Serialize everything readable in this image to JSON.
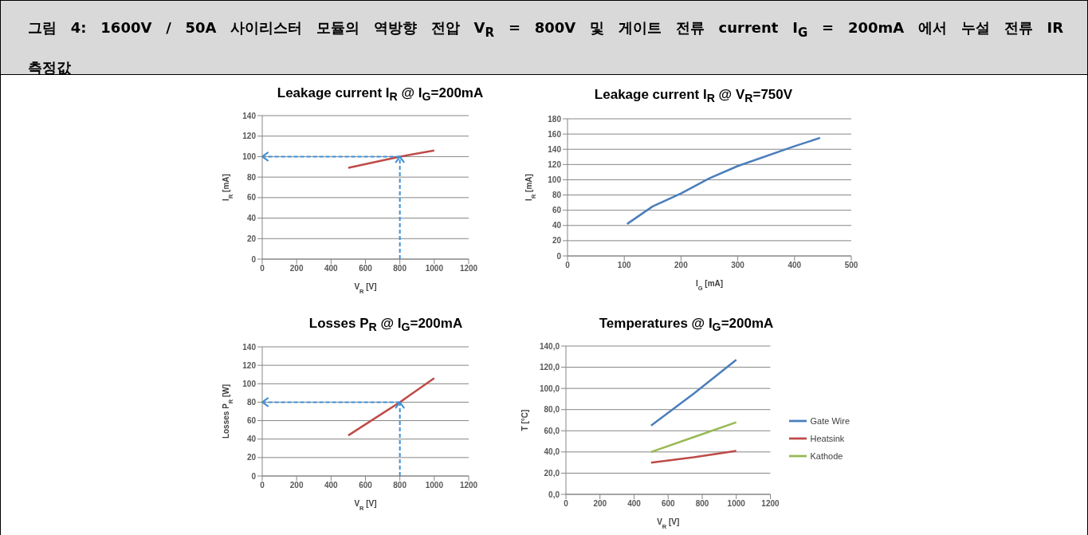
{
  "chart_data": [
    {
      "type": "line",
      "title": "Leakage current I$_{R}$ @ I$_{G}$=200mA",
      "xlabel": "V$_{R}$ [V]",
      "ylabel": "I$_{R}$ [mA]",
      "annotations": [
        "그림 4: 1600V / 50A 사이리스터 모듈의 역방향 전압 V$_{R}$ = 800V 및 게이트 전류 current I$_{G}$ = 200mA 에서 누설 전류 IR 측정값"
      ],
      "x": [
        500,
        800,
        1000
      ],
      "values": [
        89,
        100,
        106
      ],
      "color": "#be4b48",
      "xlim": [
        0,
        1200
      ],
      "xticks": [
        0,
        200,
        400,
        600,
        800,
        1000,
        1200
      ],
      "ylim": [
        0,
        140
      ],
      "yticks": [
        0,
        20,
        40,
        60,
        80,
        100,
        120,
        140
      ],
      "grid": "y",
      "marker": "none",
      "ref_lines": [
        {
          "axis": "x",
          "value": 800,
          "color": "#3f8fd8",
          "line_style": "dashed"
        },
        {
          "axis": "y",
          "value": 100,
          "color": "#3f8fd8",
          "line_style": "dashed"
        }
      ]
    },
    {
      "type": "line",
      "title": "Leakage current I$_{R}$ @ V$_{R}$=750V",
      "xlabel": "I$_{G}$ [mA]",
      "ylabel": "I$_{R}$ [mA]",
      "x": [
        105,
        150,
        200,
        250,
        300,
        400,
        445
      ],
      "values": [
        42,
        65,
        82,
        102,
        118,
        144,
        155
      ],
      "color": "#4a7ebb",
      "xlim": [
        0,
        500
      ],
      "xticks": [
        0,
        100,
        200,
        300,
        400,
        500
      ],
      "ylim": [
        0,
        180
      ],
      "yticks": [
        0,
        20,
        40,
        60,
        80,
        100,
        120,
        140,
        160,
        180
      ],
      "grid": "y",
      "marker": "none"
    },
    {
      "type": "line",
      "title": "Losses P$_{R}$ @ I$_{G}$=200mA",
      "xlabel": "V$_{R}$ [V]",
      "ylabel": "Losses P$_{R}$ [W]",
      "x": [
        500,
        800,
        1000
      ],
      "values": [
        44,
        80,
        106
      ],
      "color": "#be4b48",
      "xlim": [
        0,
        1200
      ],
      "xticks": [
        0,
        200,
        400,
        600,
        800,
        1000,
        1200
      ],
      "ylim": [
        0,
        140
      ],
      "yticks": [
        0,
        20,
        40,
        60,
        80,
        100,
        120,
        140
      ],
      "grid": "y",
      "marker": "none",
      "ref_lines": [
        {
          "axis": "x",
          "value": 800,
          "color": "#3f8fd8",
          "line_style": "dashed"
        },
        {
          "axis": "y",
          "value": 80,
          "color": "#3f8fd8",
          "line_style": "dashed"
        }
      ]
    },
    {
      "type": "line",
      "title": "Temperatures @ I$_{G}$=200mA",
      "xlabel": "V$_{R}$ [V]",
      "ylabel": "T [°C]",
      "x": [
        500,
        750,
        1000
      ],
      "series": [
        {
          "name": "Gate Wire",
          "color": "#4a7ebb",
          "values": [
            65,
            95,
            127
          ]
        },
        {
          "name": "Heatsink",
          "color": "#be4b48",
          "values": [
            30,
            35,
            41
          ]
        },
        {
          "name": "Kathode",
          "color": "#98b954",
          "values": [
            40,
            54,
            68
          ]
        }
      ],
      "xlim": [
        0,
        1200
      ],
      "xticks": [
        0,
        200,
        400,
        600,
        800,
        1000,
        1200
      ],
      "ylim": [
        0,
        140
      ],
      "yticks": [
        {
          "value": 0,
          "label": "0,0"
        },
        {
          "value": 20,
          "label": "20,0"
        },
        {
          "value": 40,
          "label": "40,0"
        },
        {
          "value": 60,
          "label": "60,0"
        },
        {
          "value": 80,
          "label": "80,0"
        },
        {
          "value": 100,
          "label": "100,0"
        },
        {
          "value": 120,
          "label": "120,0"
        },
        {
          "value": 140,
          "label": "140,0"
        }
      ],
      "grid": "y",
      "marker": "none",
      "legend": "right"
    }
  ]
}
